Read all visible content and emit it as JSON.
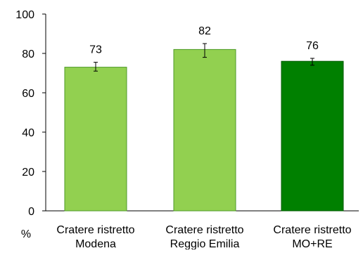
{
  "chart_data": {
    "type": "bar",
    "categories": [
      [
        "Cratere ristretto",
        "Modena"
      ],
      [
        "Cratere ristretto",
        "Reggio Emilia"
      ],
      [
        "Cratere ristretto",
        "MO+RE"
      ]
    ],
    "values": [
      73,
      82,
      76
    ],
    "data_labels": [
      "73",
      "82",
      "76"
    ],
    "error_bars": [
      {
        "low": 71,
        "high": 75.5
      },
      {
        "low": 78,
        "high": 85
      },
      {
        "low": 74,
        "high": 77.5
      }
    ],
    "bar_colors": [
      "#92d050",
      "#92d050",
      "#008000"
    ],
    "bar_border_colors": [
      "#4e9a28",
      "#4e9a28",
      "#005a00"
    ],
    "y_ticks": [
      "0",
      "20",
      "40",
      "60",
      "80",
      "100"
    ],
    "ylim": [
      0,
      100
    ],
    "ylabel": "%",
    "title": "",
    "xlabel": "",
    "grid": false,
    "legend": "none"
  }
}
